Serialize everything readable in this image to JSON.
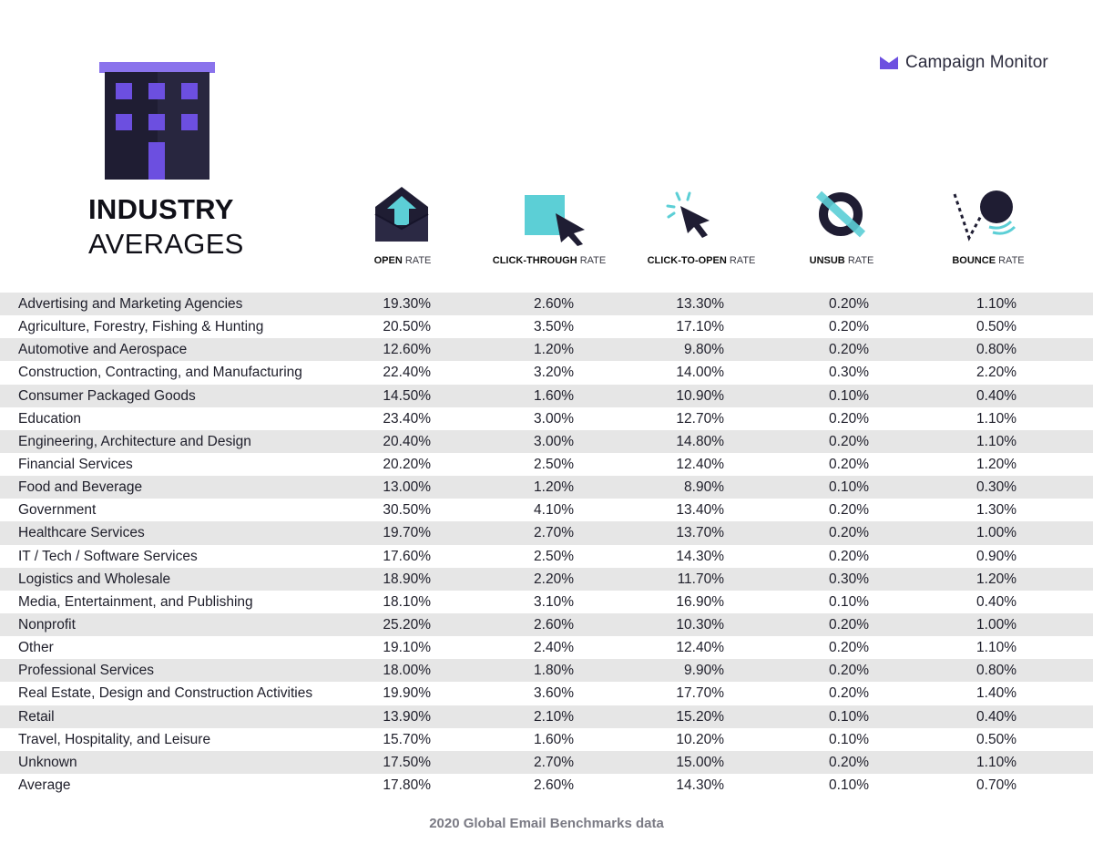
{
  "brand": {
    "name": "Campaign Monitor"
  },
  "title": {
    "line1": "INDUSTRY",
    "line2": "AVERAGES"
  },
  "colors": {
    "accent_purple": "#6c4fe0",
    "accent_cyan": "#5ccfd6",
    "building_dark": "#1f1d33",
    "row_shade": "#e6e6e6"
  },
  "columns": [
    {
      "bold": "OPEN",
      "rest": "RATE",
      "icon": "open-envelope-icon"
    },
    {
      "bold": "CLICK-THROUGH",
      "rest": "RATE",
      "icon": "cursor-square-icon"
    },
    {
      "bold": "CLICK-TO-OPEN",
      "rest": "RATE",
      "icon": "cursor-click-icon"
    },
    {
      "bold": "UNSUB",
      "rest": "RATE",
      "icon": "unsubscribe-icon"
    },
    {
      "bold": "BOUNCE",
      "rest": "RATE",
      "icon": "bounce-ball-icon"
    }
  ],
  "chart_data": {
    "type": "table",
    "columns": [
      "OPEN RATE",
      "CLICK-THROUGH RATE",
      "CLICK-TO-OPEN RATE",
      "UNSUB RATE",
      "BOUNCE RATE"
    ],
    "rows": [
      {
        "name": "Advertising and Marketing Agencies",
        "values": [
          "19.30%",
          "2.60%",
          "13.30%",
          "0.20%",
          "1.10%"
        ]
      },
      {
        "name": "Agriculture, Forestry, Fishing & Hunting",
        "values": [
          "20.50%",
          "3.50%",
          "17.10%",
          "0.20%",
          "0.50%"
        ]
      },
      {
        "name": "Automotive and Aerospace",
        "values": [
          "12.60%",
          "1.20%",
          "9.80%",
          "0.20%",
          "0.80%"
        ]
      },
      {
        "name": "Construction, Contracting, and Manufacturing",
        "values": [
          "22.40%",
          "3.20%",
          "14.00%",
          "0.30%",
          "2.20%"
        ]
      },
      {
        "name": "Consumer Packaged Goods",
        "values": [
          "14.50%",
          "1.60%",
          "10.90%",
          "0.10%",
          "0.40%"
        ]
      },
      {
        "name": "Education",
        "values": [
          "23.40%",
          "3.00%",
          "12.70%",
          "0.20%",
          "1.10%"
        ]
      },
      {
        "name": "Engineering, Architecture and Design",
        "values": [
          "20.40%",
          "3.00%",
          "14.80%",
          "0.20%",
          "1.10%"
        ]
      },
      {
        "name": "Financial Services",
        "values": [
          "20.20%",
          "2.50%",
          "12.40%",
          "0.20%",
          "1.20%"
        ]
      },
      {
        "name": "Food and Beverage",
        "values": [
          "13.00%",
          "1.20%",
          "8.90%",
          "0.10%",
          "0.30%"
        ]
      },
      {
        "name": "Government",
        "values": [
          "30.50%",
          "4.10%",
          "13.40%",
          "0.20%",
          "1.30%"
        ]
      },
      {
        "name": "Healthcare Services",
        "values": [
          "19.70%",
          "2.70%",
          "13.70%",
          "0.20%",
          "1.00%"
        ]
      },
      {
        "name": "IT / Tech / Software Services",
        "values": [
          "17.60%",
          "2.50%",
          "14.30%",
          "0.20%",
          "0.90%"
        ]
      },
      {
        "name": "Logistics and Wholesale",
        "values": [
          "18.90%",
          "2.20%",
          "11.70%",
          "0.30%",
          "1.20%"
        ]
      },
      {
        "name": "Media, Entertainment, and Publishing",
        "values": [
          "18.10%",
          "3.10%",
          "16.90%",
          "0.10%",
          "0.40%"
        ]
      },
      {
        "name": "Nonprofit",
        "values": [
          "25.20%",
          "2.60%",
          "10.30%",
          "0.20%",
          "1.00%"
        ]
      },
      {
        "name": "Other",
        "values": [
          "19.10%",
          "2.40%",
          "12.40%",
          "0.20%",
          "1.10%"
        ]
      },
      {
        "name": "Professional Services",
        "values": [
          "18.00%",
          "1.80%",
          "9.90%",
          "0.20%",
          "0.80%"
        ]
      },
      {
        "name": "Real Estate, Design and Construction Activities",
        "values": [
          "19.90%",
          "3.60%",
          "17.70%",
          "0.20%",
          "1.40%"
        ]
      },
      {
        "name": "Retail",
        "values": [
          "13.90%",
          "2.10%",
          "15.20%",
          "0.10%",
          "0.40%"
        ]
      },
      {
        "name": "Travel, Hospitality, and Leisure",
        "values": [
          "15.70%",
          "1.60%",
          "10.20%",
          "0.10%",
          "0.50%"
        ]
      },
      {
        "name": "Unknown",
        "values": [
          "17.50%",
          "2.70%",
          "15.00%",
          "0.20%",
          "1.10%"
        ]
      },
      {
        "name": "Average",
        "values": [
          "17.80%",
          "2.60%",
          "14.30%",
          "0.10%",
          "0.70%"
        ]
      }
    ]
  },
  "footer": "2020 Global Email Benchmarks data"
}
